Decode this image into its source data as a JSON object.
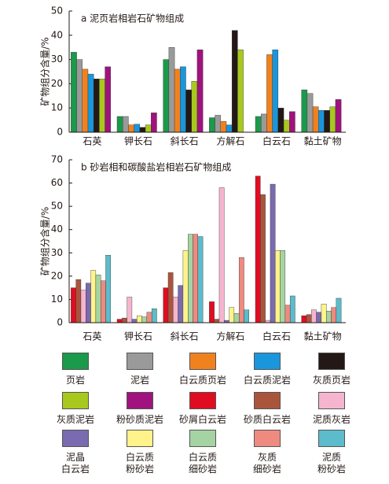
{
  "chart_data": [
    {
      "type": "bar",
      "title": "a 泥页岩相岩石矿物组成",
      "y_label": "矿物组分含量/%",
      "categories": [
        "石英",
        "钾长石",
        "斜长石",
        "方解石",
        "白云石",
        "黏土矿物"
      ],
      "ylim": [
        0,
        50
      ],
      "yticks": [
        0,
        10,
        20,
        30,
        40,
        50
      ],
      "series": [
        {
          "name": "页岩",
          "color": "#1a9a4a",
          "values": [
            33,
            6.5,
            30,
            6,
            6.5,
            17.5
          ]
        },
        {
          "name": "泥岩",
          "color": "#9a9a9a",
          "values": [
            30,
            6.5,
            35,
            7,
            7.5,
            16
          ]
        },
        {
          "name": "白云质页岩",
          "color": "#f0821e",
          "values": [
            26,
            3,
            26,
            4.5,
            32,
            10.5
          ]
        },
        {
          "name": "白云质泥岩",
          "color": "#1a96dc",
          "values": [
            24,
            3.3,
            27,
            3,
            34,
            9
          ]
        },
        {
          "name": "灰质页岩",
          "color": "#231815",
          "values": [
            22,
            2,
            17.5,
            42,
            10,
            9
          ]
        },
        {
          "name": "灰质泥岩",
          "color": "#a8c81e",
          "values": [
            22,
            3,
            21,
            34,
            5,
            10.5
          ]
        },
        {
          "name": "粉砂质泥岩",
          "color": "#a0127e",
          "values": [
            27,
            8,
            34,
            0,
            8.5,
            13.5
          ]
        }
      ]
    },
    {
      "type": "bar",
      "title": "b 砂岩相和碳酸盐岩相岩石矿物组成",
      "y_label": "矿物组分含量/%",
      "categories": [
        "石英",
        "钾长石",
        "斜长石",
        "方解石",
        "白云石",
        "黏土矿物"
      ],
      "ylim": [
        0,
        70
      ],
      "yticks": [
        0,
        10,
        20,
        30,
        40,
        50,
        60,
        70
      ],
      "series": [
        {
          "name": "砂屑白云岩",
          "color": "#e00d22",
          "values": [
            15,
            1.5,
            15,
            9,
            63,
            3
          ]
        },
        {
          "name": "砂质白云岩",
          "color": "#a9553c",
          "values": [
            18.5,
            2,
            21.5,
            1.5,
            55,
            3.5
          ]
        },
        {
          "name": "泥质灰岩",
          "color": "#f5b5cf",
          "values": [
            14,
            11,
            11,
            58,
            1,
            5.5
          ]
        },
        {
          "name": "泥晶\n白云岩",
          "color": "#7a6ab0",
          "values": [
            17,
            1.5,
            16,
            1,
            59.5,
            4.5
          ]
        },
        {
          "name": "白云质\n粉砂岩",
          "color": "#fff38a",
          "values": [
            22.5,
            3,
            31,
            6.5,
            31,
            8
          ]
        },
        {
          "name": "白云质\n细砂岩",
          "color": "#a5d4a2",
          "values": [
            20.5,
            2.5,
            38,
            4,
            31,
            5
          ]
        },
        {
          "name": "灰质\n细砂岩",
          "color": "#ef8a80",
          "values": [
            18,
            4.5,
            38,
            28,
            7.5,
            6.5
          ]
        },
        {
          "name": "泥质\n粉砂岩",
          "color": "#5cbccb",
          "values": [
            29,
            6,
            37,
            5.5,
            11.5,
            10.5
          ]
        }
      ]
    }
  ]
}
